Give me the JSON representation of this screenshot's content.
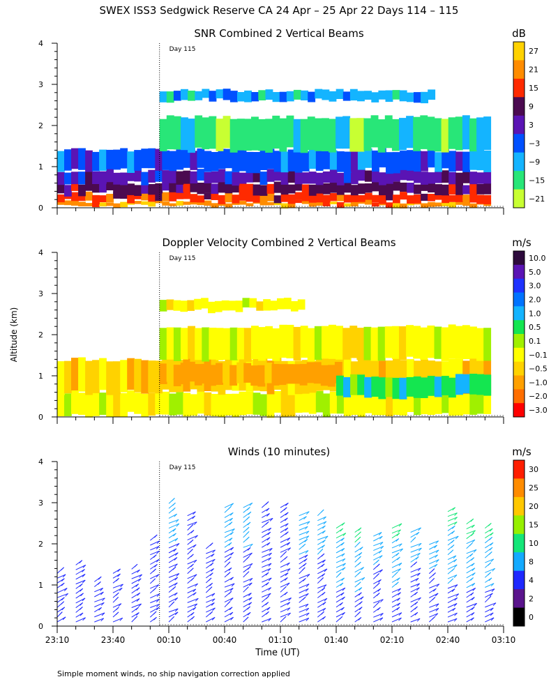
{
  "title": "SWEX ISS3 Sedgwick Reserve CA  24 Apr – 25 Apr 22 Days 114 – 115",
  "ylabel": "Altitude (km)",
  "xlabel": "Time (UT)",
  "footnote": "Simple moment winds, no ship navigation correction applied",
  "day_marker": "Day 115",
  "x_ticks": [
    "23:10",
    "23:40",
    "00:10",
    "00:40",
    "01:10",
    "01:40",
    "02:10",
    "02:40",
    "03:10"
  ],
  "y_ticks": [
    "0",
    "1",
    "2",
    "3",
    "4"
  ],
  "panels": [
    {
      "title": "SNR Combined 2 Vertical Beams",
      "unit": "dB",
      "colorbar_labels": [
        "27",
        "21",
        "15",
        "9",
        "3",
        "−3",
        "−9",
        "−15",
        "−21"
      ],
      "colors": [
        "#ffd200",
        "#ff8c00",
        "#ff2a00",
        "#4b0a50",
        "#5a14b4",
        "#0050ff",
        "#14b4ff",
        "#28e678",
        "#c8ff32"
      ]
    },
    {
      "title": "Doppler Velocity Combined 2 Vertical Beams",
      "unit": "m/s",
      "colorbar_labels": [
        "10.0",
        "5.0",
        "3.0",
        "2.0",
        "1.0",
        "0.5",
        "0.1",
        "−0.1",
        "−0.5",
        "−1.0",
        "−2.0",
        "−3.0"
      ],
      "colors": [
        "#2d0a3c",
        "#5a14b4",
        "#1e32ff",
        "#0073ff",
        "#14b4ff",
        "#14e650",
        "#a0f000",
        "#ffff00",
        "#ffd200",
        "#ffa000",
        "#ff6e00",
        "#ff0000"
      ]
    },
    {
      "title": "Winds (10 minutes)",
      "unit": "m/s",
      "colorbar_labels": [
        "30",
        "25",
        "20",
        "15",
        "10",
        "8",
        "4",
        "2",
        "0"
      ],
      "colors": [
        "#ff1e00",
        "#ff8c00",
        "#ffc800",
        "#96f000",
        "#14e678",
        "#14aaff",
        "#1e28ff",
        "#5a148c",
        "#000000"
      ]
    }
  ],
  "chart_data": [
    {
      "type": "heatmap",
      "title": "SNR Combined 2 Vertical Beams",
      "unit": "dB",
      "x_range": [
        "23:10",
        "03:10"
      ],
      "ylim": [
        0,
        4
      ],
      "xlabel": "",
      "ylabel": "Altitude (km)",
      "layers": [
        {
          "from_time": "23:10",
          "to_time": "03:00",
          "altitudes_km": [
            0.05,
            0.15
          ],
          "snr_db": 21
        },
        {
          "from_time": "23:10",
          "to_time": "03:00",
          "altitudes_km": [
            0.15,
            0.35
          ],
          "snr_db": 15
        },
        {
          "from_time": "23:10",
          "to_time": "03:00",
          "altitudes_km": [
            0.35,
            0.6
          ],
          "snr_db": 9
        },
        {
          "from_time": "23:10",
          "to_time": "03:00",
          "altitudes_km": [
            0.6,
            0.9
          ],
          "snr_db": 0
        },
        {
          "from_time": "23:10",
          "to_time": "03:00",
          "altitudes_km": [
            0.9,
            1.4
          ],
          "snr_db": -6
        },
        {
          "from_time": "00:05",
          "to_time": "03:00",
          "altitudes_km": [
            1.4,
            2.2
          ],
          "snr_db": -18
        },
        {
          "from_time": "00:05",
          "to_time": "02:30",
          "altitudes_km": [
            2.6,
            2.85
          ],
          "snr_db": -12
        }
      ]
    },
    {
      "type": "heatmap",
      "title": "Doppler Velocity Combined 2 Vertical Beams",
      "unit": "m/s",
      "x_range": [
        "23:10",
        "03:10"
      ],
      "ylim": [
        0,
        4
      ],
      "xlabel": "",
      "ylabel": "Altitude (km)",
      "layers": [
        {
          "from_time": "23:10",
          "to_time": "03:00",
          "altitudes_km": [
            0.05,
            0.6
          ],
          "velocity_ms": -0.1
        },
        {
          "from_time": "23:10",
          "to_time": "03:00",
          "altitudes_km": [
            0.6,
            1.4
          ],
          "velocity_ms": -0.5
        },
        {
          "from_time": "00:05",
          "to_time": "01:40",
          "altitudes_km": [
            0.8,
            1.3
          ],
          "velocity_ms": -1.0
        },
        {
          "from_time": "01:40",
          "to_time": "03:00",
          "altitudes_km": [
            0.5,
            1.0
          ],
          "velocity_ms": 0.5
        },
        {
          "from_time": "00:05",
          "to_time": "03:00",
          "altitudes_km": [
            1.4,
            2.2
          ],
          "velocity_ms": -0.1
        },
        {
          "from_time": "00:05",
          "to_time": "01:20",
          "altitudes_km": [
            2.6,
            2.85
          ],
          "velocity_ms": -0.1
        }
      ]
    },
    {
      "type": "scatter",
      "title": "Winds (10 minutes)",
      "unit": "m/s",
      "x_range": [
        "23:10",
        "03:10"
      ],
      "ylim": [
        0,
        4
      ],
      "xlabel": "Time (UT)",
      "ylabel": "Altitude (km)",
      "profiles": [
        {
          "time": "23:10",
          "top_km": 1.4,
          "speed_ms": 4
        },
        {
          "time": "23:20",
          "top_km": 1.6,
          "speed_ms": 4
        },
        {
          "time": "23:30",
          "top_km": 1.2,
          "speed_ms": 4
        },
        {
          "time": "23:40",
          "top_km": 1.4,
          "speed_ms": 4
        },
        {
          "time": "23:50",
          "top_km": 1.5,
          "speed_ms": 4
        },
        {
          "time": "00:00",
          "top_km": 2.2,
          "speed_ms": 4
        },
        {
          "time": "00:10",
          "top_km": 3.1,
          "speed_ms": 8
        },
        {
          "time": "00:20",
          "top_km": 2.8,
          "speed_ms": 6
        },
        {
          "time": "00:30",
          "top_km": 2.0,
          "speed_ms": 4
        },
        {
          "time": "00:40",
          "top_km": 3.0,
          "speed_ms": 8
        },
        {
          "time": "00:50",
          "top_km": 3.0,
          "speed_ms": 8
        },
        {
          "time": "01:00",
          "top_km": 3.0,
          "speed_ms": 6
        },
        {
          "time": "01:10",
          "top_km": 3.0,
          "speed_ms": 6
        },
        {
          "time": "01:20",
          "top_km": 2.8,
          "speed_ms": 8
        },
        {
          "time": "01:30",
          "top_km": 2.8,
          "speed_ms": 8
        },
        {
          "time": "01:40",
          "top_km": 2.5,
          "speed_ms": 10
        },
        {
          "time": "01:50",
          "top_km": 2.4,
          "speed_ms": 12
        },
        {
          "time": "02:00",
          "top_km": 2.3,
          "speed_ms": 8
        },
        {
          "time": "02:10",
          "top_km": 2.5,
          "speed_ms": 12
        },
        {
          "time": "02:20",
          "top_km": 2.4,
          "speed_ms": 8
        },
        {
          "time": "02:30",
          "top_km": 2.1,
          "speed_ms": 8
        },
        {
          "time": "02:40",
          "top_km": 2.9,
          "speed_ms": 10
        },
        {
          "time": "02:50",
          "top_km": 2.6,
          "speed_ms": 10
        },
        {
          "time": "03:00",
          "top_km": 2.5,
          "speed_ms": 12
        }
      ]
    }
  ]
}
